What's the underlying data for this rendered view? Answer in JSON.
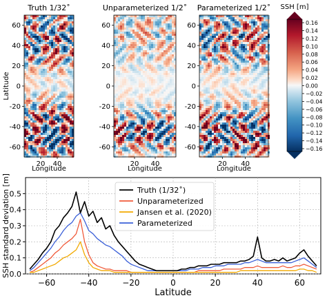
{
  "chart_data": [
    {
      "type": "heatmap",
      "title": "Truth 1/32$^\\circ$",
      "title_text": "Truth 1/32˚",
      "xlabel": "Longitude",
      "ylabel": "Latitude",
      "xticks": [
        20,
        40
      ],
      "yticks": [
        60,
        40,
        20,
        0,
        -20,
        -40,
        -60
      ],
      "xlim": [
        0,
        60
      ],
      "ylim": [
        -70,
        70
      ],
      "eddy_amplitude_by_latitude": [
        {
          "lat": 65,
          "amp": 0.6
        },
        {
          "lat": 50,
          "amp": 0.85
        },
        {
          "lat": 40,
          "amp": 0.8
        },
        {
          "lat": 25,
          "amp": 0.55
        },
        {
          "lat": 10,
          "amp": 0.15
        },
        {
          "lat": 0,
          "amp": 0.1
        },
        {
          "lat": -15,
          "amp": 0.35
        },
        {
          "lat": -30,
          "amp": 0.9
        },
        {
          "lat": -45,
          "amp": 1.0
        },
        {
          "lat": -60,
          "amp": 0.9
        },
        {
          "lat": -68,
          "amp": 0.5
        }
      ]
    },
    {
      "type": "heatmap",
      "title_text": "Unparameterized 1/2˚",
      "xlabel": "Longitude",
      "xticks": [
        20,
        40
      ],
      "yticks": [
        60,
        40,
        20,
        0,
        -20,
        -40,
        -60
      ],
      "xlim": [
        0,
        60
      ],
      "ylim": [
        -70,
        70
      ],
      "eddy_amplitude_by_latitude": [
        {
          "lat": 65,
          "amp": 0.35
        },
        {
          "lat": 50,
          "amp": 0.35
        },
        {
          "lat": 40,
          "amp": 0.3
        },
        {
          "lat": 25,
          "amp": 0.2
        },
        {
          "lat": 10,
          "amp": 0.05
        },
        {
          "lat": 0,
          "amp": 0.05
        },
        {
          "lat": -15,
          "amp": 0.1
        },
        {
          "lat": -30,
          "amp": 0.45
        },
        {
          "lat": -45,
          "amp": 1.0
        },
        {
          "lat": -60,
          "amp": 0.5
        },
        {
          "lat": -68,
          "amp": 0.2
        }
      ]
    },
    {
      "type": "heatmap",
      "title_text": "Parameterized 1/2˚",
      "xlabel": "Longitude",
      "xticks": [
        20,
        40
      ],
      "yticks": [
        60,
        40,
        20,
        0,
        -20,
        -40,
        -60
      ],
      "xlim": [
        0,
        60
      ],
      "ylim": [
        -70,
        70
      ],
      "eddy_amplitude_by_latitude": [
        {
          "lat": 65,
          "amp": 0.55
        },
        {
          "lat": 50,
          "amp": 0.75
        },
        {
          "lat": 40,
          "amp": 0.7
        },
        {
          "lat": 25,
          "amp": 0.45
        },
        {
          "lat": 10,
          "amp": 0.1
        },
        {
          "lat": 0,
          "amp": 0.08
        },
        {
          "lat": -15,
          "amp": 0.2
        },
        {
          "lat": -30,
          "amp": 0.7
        },
        {
          "lat": -45,
          "amp": 1.0
        },
        {
          "lat": -60,
          "amp": 0.8
        },
        {
          "lat": -68,
          "amp": 0.4
        }
      ]
    },
    {
      "type": "colorbar",
      "label": "SSH [m]",
      "ticks": [
        "0.16",
        "0.14",
        "0.12",
        "0.10",
        "0.08",
        "0.06",
        "0.04",
        "0.02",
        "0.00",
        "−0.02",
        "−0.04",
        "−0.06",
        "−0.08",
        "−0.10",
        "−0.12",
        "−0.14",
        "−0.16"
      ],
      "range": [
        -0.16,
        0.16
      ],
      "colors": {
        "high": "#67001f",
        "mid": "#f7f7f7",
        "low": "#053061"
      }
    },
    {
      "type": "line",
      "xlabel": "Latitude",
      "ylabel": "SSH standard deviation [m]",
      "xlim": [
        -70,
        70
      ],
      "ylim": [
        0,
        0.6
      ],
      "xticks": [
        -60,
        -40,
        -20,
        0,
        20,
        40,
        60
      ],
      "xtick_labels": [
        "−60",
        "−40",
        "−20",
        "0",
        "20",
        "40",
        "60"
      ],
      "yticks": [
        0,
        0.1,
        0.2,
        0.3,
        0.4,
        0.5
      ],
      "ytick_labels": [
        "0.0",
        "0.1",
        "0.2",
        "0.3",
        "0.4",
        "0.5"
      ],
      "legend_position": "top-center",
      "series": [
        {
          "name": "Truth (1/32$^\\circ$)",
          "legend_label": "Truth (1/32˚)",
          "color": "#000000",
          "x": [
            -68,
            -66,
            -64,
            -62,
            -60,
            -58,
            -56,
            -54,
            -52,
            -50,
            -48,
            -46,
            -44,
            -42,
            -40,
            -38,
            -36,
            -34,
            -32,
            -30,
            -28,
            -26,
            -24,
            -22,
            -20,
            -18,
            -16,
            -14,
            -12,
            -10,
            -8,
            -6,
            -4,
            -2,
            0,
            2,
            4,
            6,
            8,
            10,
            12,
            14,
            16,
            18,
            20,
            22,
            24,
            26,
            28,
            30,
            32,
            34,
            36,
            38,
            40,
            42,
            44,
            46,
            48,
            50,
            52,
            54,
            56,
            58,
            60,
            62,
            64,
            66,
            68
          ],
          "y": [
            0.03,
            0.06,
            0.09,
            0.13,
            0.16,
            0.2,
            0.27,
            0.3,
            0.35,
            0.38,
            0.42,
            0.51,
            0.38,
            0.45,
            0.36,
            0.39,
            0.32,
            0.35,
            0.28,
            0.3,
            0.24,
            0.2,
            0.17,
            0.14,
            0.11,
            0.08,
            0.06,
            0.05,
            0.04,
            0.03,
            0.02,
            0.02,
            0.02,
            0.02,
            0.02,
            0.02,
            0.03,
            0.03,
            0.04,
            0.04,
            0.05,
            0.05,
            0.05,
            0.06,
            0.06,
            0.06,
            0.07,
            0.07,
            0.07,
            0.07,
            0.08,
            0.08,
            0.09,
            0.11,
            0.23,
            0.1,
            0.08,
            0.08,
            0.09,
            0.08,
            0.1,
            0.08,
            0.09,
            0.1,
            0.13,
            0.15,
            0.11,
            0.08,
            0.05
          ]
        },
        {
          "name": "Unparameterized",
          "legend_label": "Unparameterized",
          "color": "#f05a3a",
          "x": [
            -68,
            -66,
            -64,
            -62,
            -60,
            -58,
            -56,
            -54,
            -52,
            -50,
            -48,
            -46,
            -44,
            -42,
            -40,
            -38,
            -36,
            -34,
            -32,
            -30,
            -28,
            -26,
            -24,
            -22,
            -20,
            -18,
            -16,
            -14,
            -12,
            -10,
            -8,
            -6,
            -4,
            -2,
            0,
            2,
            4,
            6,
            8,
            10,
            12,
            14,
            16,
            18,
            20,
            22,
            24,
            26,
            28,
            30,
            32,
            34,
            36,
            38,
            40,
            42,
            44,
            46,
            48,
            50,
            52,
            54,
            56,
            58,
            60,
            62,
            64,
            66,
            68
          ],
          "y": [
            0.01,
            0.02,
            0.04,
            0.06,
            0.08,
            0.1,
            0.13,
            0.15,
            0.18,
            0.2,
            0.22,
            0.25,
            0.34,
            0.2,
            0.12,
            0.07,
            0.05,
            0.04,
            0.03,
            0.03,
            0.02,
            0.02,
            0.02,
            0.02,
            0.01,
            0.01,
            0.01,
            0.01,
            0.01,
            0.01,
            0.01,
            0.01,
            0.01,
            0.01,
            0.01,
            0.01,
            0.01,
            0.01,
            0.01,
            0.01,
            0.02,
            0.02,
            0.02,
            0.02,
            0.02,
            0.02,
            0.03,
            0.03,
            0.03,
            0.03,
            0.03,
            0.04,
            0.04,
            0.04,
            0.05,
            0.04,
            0.04,
            0.04,
            0.04,
            0.04,
            0.05,
            0.04,
            0.04,
            0.05,
            0.05,
            0.06,
            0.05,
            0.04,
            0.03
          ]
        },
        {
          "name": "Jansen et al. (2020)",
          "legend_label": "Jansen et al. (2020)",
          "color": "#f2a900",
          "x": [
            -68,
            -66,
            -64,
            -62,
            -60,
            -58,
            -56,
            -54,
            -52,
            -50,
            -48,
            -46,
            -44,
            -42,
            -40,
            -38,
            -36,
            -34,
            -32,
            -30,
            -28,
            -26,
            -24,
            -22,
            -20,
            -18,
            -16,
            -14,
            -12,
            -10,
            -8,
            -6,
            -4,
            -2,
            0,
            2,
            4,
            6,
            8,
            10,
            12,
            14,
            16,
            18,
            20,
            22,
            24,
            26,
            28,
            30,
            32,
            34,
            36,
            38,
            40,
            42,
            44,
            46,
            48,
            50,
            52,
            54,
            56,
            58,
            60,
            62,
            64,
            66,
            68
          ],
          "y": [
            0.01,
            0.01,
            0.02,
            0.03,
            0.04,
            0.05,
            0.06,
            0.08,
            0.1,
            0.11,
            0.13,
            0.15,
            0.2,
            0.12,
            0.07,
            0.04,
            0.03,
            0.02,
            0.02,
            0.02,
            0.01,
            0.01,
            0.01,
            0.01,
            0.01,
            0.01,
            0.01,
            0.01,
            0.01,
            0.01,
            0.01,
            0.01,
            0.01,
            0.01,
            0.01,
            0.01,
            0.01,
            0.01,
            0.01,
            0.01,
            0.01,
            0.01,
            0.01,
            0.01,
            0.01,
            0.01,
            0.01,
            0.01,
            0.01,
            0.01,
            0.02,
            0.02,
            0.02,
            0.02,
            0.02,
            0.02,
            0.02,
            0.02,
            0.02,
            0.02,
            0.02,
            0.02,
            0.02,
            0.02,
            0.03,
            0.03,
            0.02,
            0.02,
            0.01
          ]
        },
        {
          "name": "Parameterized",
          "legend_label": "Parameterized",
          "color": "#3a5fd8",
          "x": [
            -68,
            -66,
            -64,
            -62,
            -60,
            -58,
            -56,
            -54,
            -52,
            -50,
            -48,
            -46,
            -44,
            -42,
            -40,
            -38,
            -36,
            -34,
            -32,
            -30,
            -28,
            -26,
            -24,
            -22,
            -20,
            -18,
            -16,
            -14,
            -12,
            -10,
            -8,
            -6,
            -4,
            -2,
            0,
            2,
            4,
            6,
            8,
            10,
            12,
            14,
            16,
            18,
            20,
            22,
            24,
            26,
            28,
            30,
            32,
            34,
            36,
            38,
            40,
            42,
            44,
            46,
            48,
            50,
            52,
            54,
            56,
            58,
            60,
            62,
            64,
            66,
            68
          ],
          "y": [
            0.02,
            0.04,
            0.07,
            0.1,
            0.13,
            0.16,
            0.2,
            0.23,
            0.27,
            0.3,
            0.32,
            0.36,
            0.38,
            0.33,
            0.27,
            0.25,
            0.22,
            0.2,
            0.18,
            0.17,
            0.15,
            0.13,
            0.11,
            0.08,
            0.06,
            0.05,
            0.04,
            0.03,
            0.02,
            0.02,
            0.02,
            0.02,
            0.02,
            0.02,
            0.02,
            0.02,
            0.02,
            0.02,
            0.03,
            0.03,
            0.03,
            0.04,
            0.04,
            0.04,
            0.05,
            0.05,
            0.05,
            0.06,
            0.06,
            0.06,
            0.06,
            0.07,
            0.07,
            0.08,
            0.09,
            0.08,
            0.07,
            0.07,
            0.07,
            0.07,
            0.07,
            0.07,
            0.07,
            0.08,
            0.09,
            0.1,
            0.08,
            0.06,
            0.04
          ]
        }
      ]
    }
  ]
}
